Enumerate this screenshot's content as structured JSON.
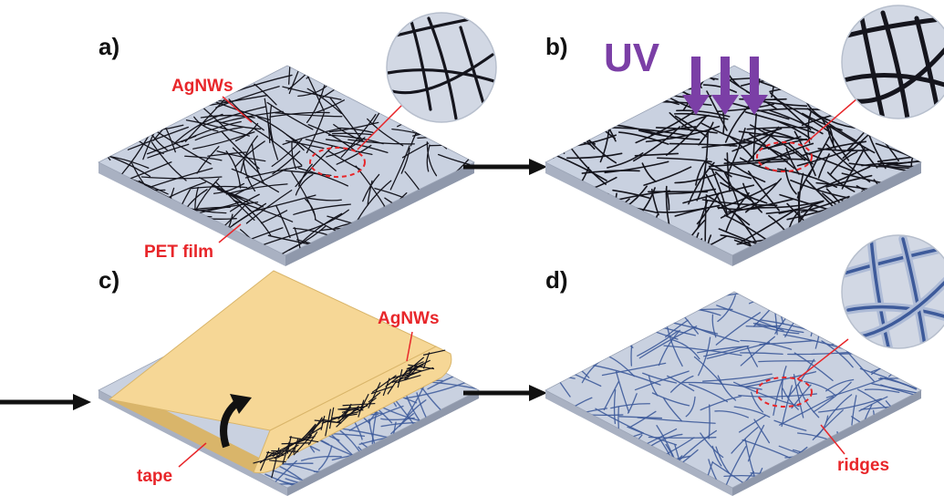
{
  "panels": {
    "a": {
      "label": "a)",
      "nanowires_label": "AgNWs",
      "substrate_label": "PET film"
    },
    "b": {
      "label": "b)",
      "uv_label": "UV"
    },
    "c": {
      "label": "c)",
      "nanowires_label": "AgNWs",
      "tape_label": "tape"
    },
    "d": {
      "label": "d)",
      "ridges_label": "ridges"
    }
  },
  "colors": {
    "accent_red": "#e8262a",
    "uv_purple": "#7b3fa6",
    "substrate_top": "#c9d1e0",
    "substrate_front": "#a9b1c2",
    "substrate_side": "#8f98ab",
    "wire_dark": "#15151d",
    "wire_ridge": "#3d5a9a",
    "tape": "#f6d796",
    "tape_edge": "#d9b56a",
    "zoom_bg": "#d2d8e4",
    "arrow": "#111111"
  },
  "icons": {
    "process_arrow": "right-arrow-icon",
    "uv_arrow": "down-arrow-icon",
    "peel_arrow": "curved-arrow-icon",
    "zoom": "magnifier-circle-icon"
  }
}
